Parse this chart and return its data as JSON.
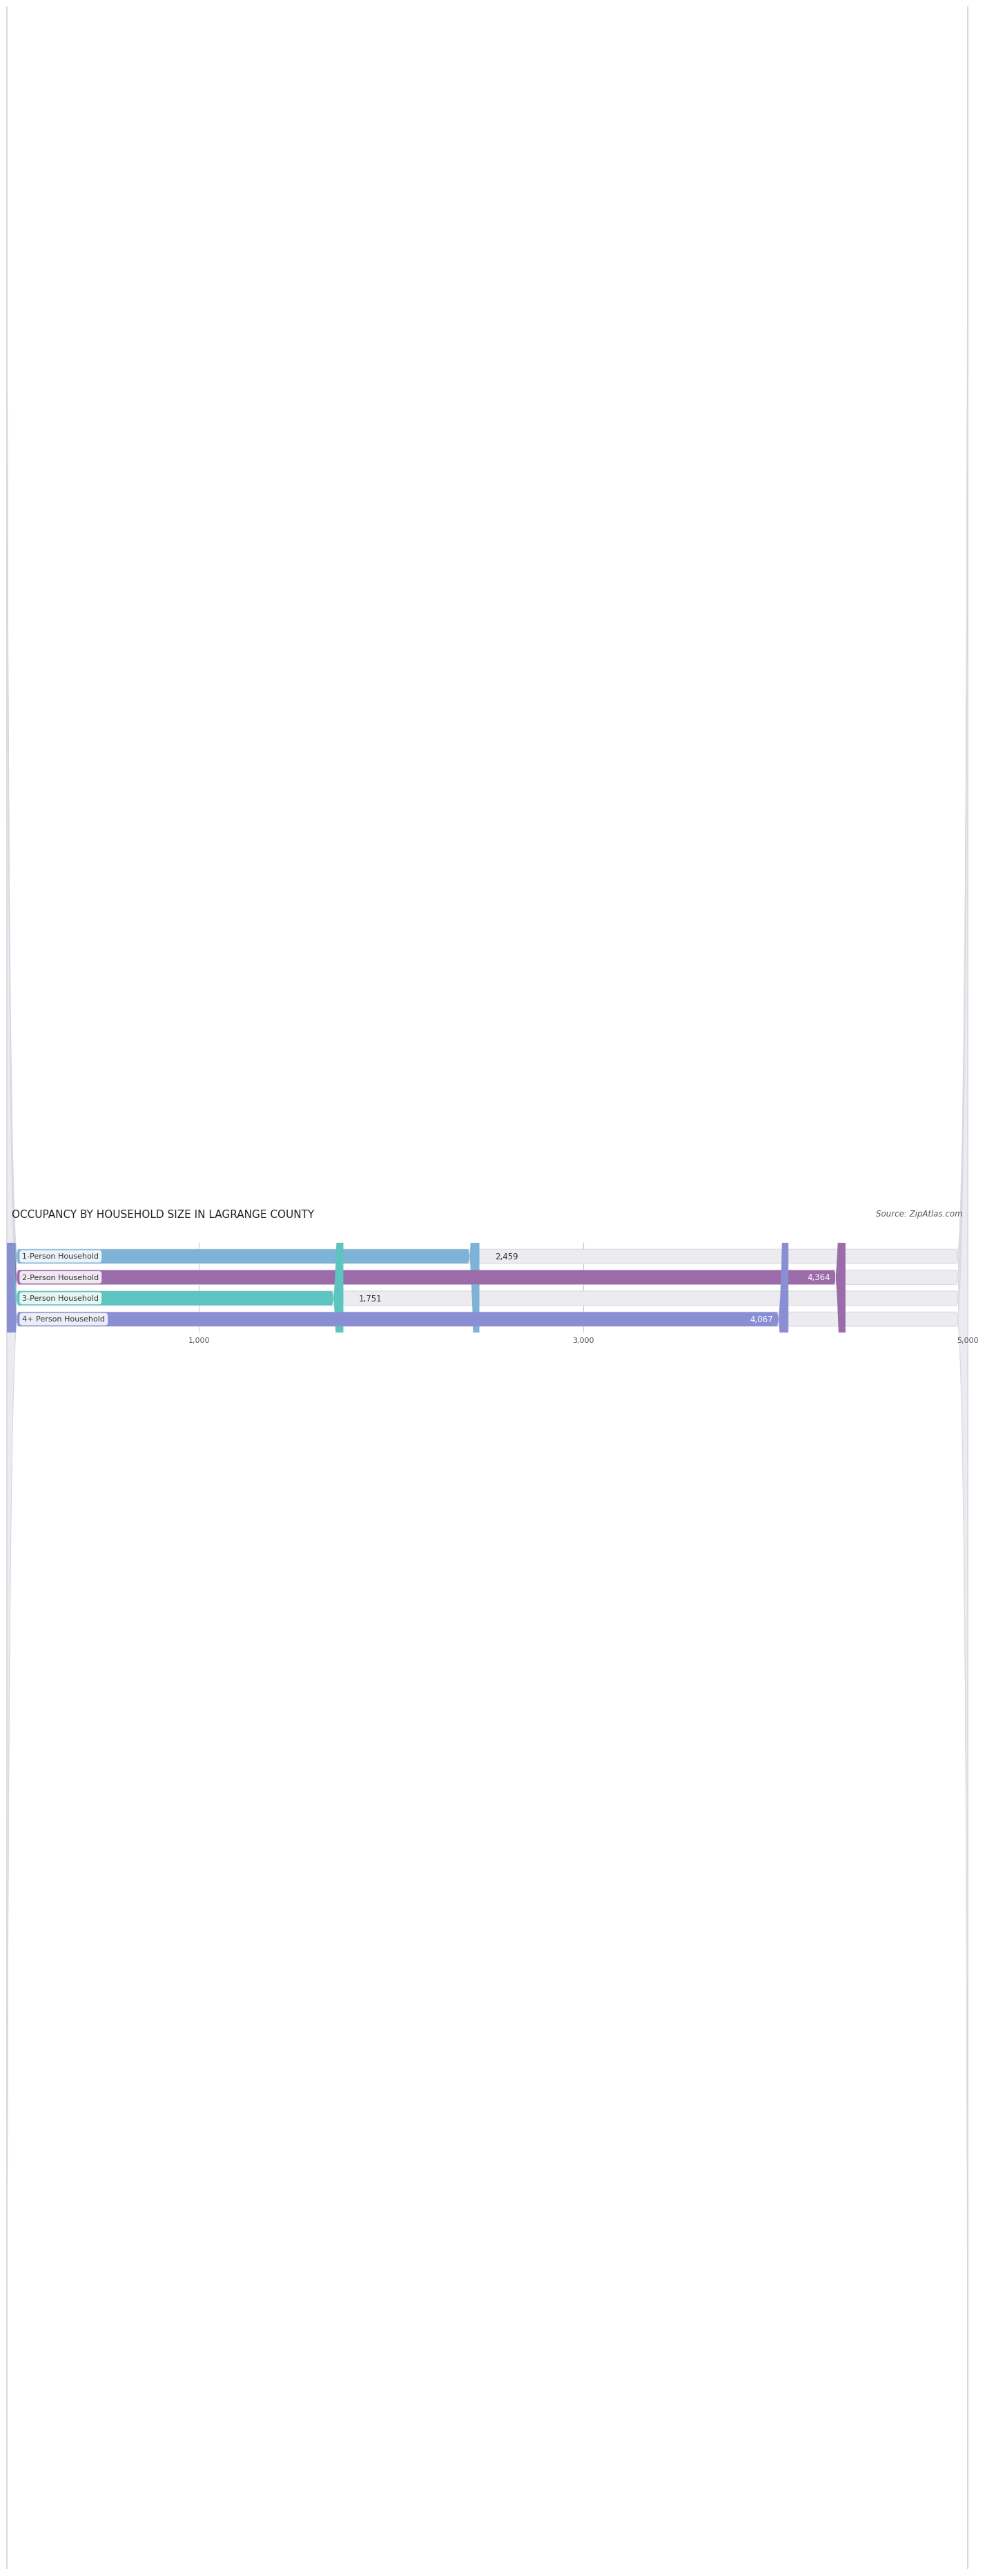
{
  "title": "OCCUPANCY BY HOUSEHOLD SIZE IN LAGRANGE COUNTY",
  "source": "Source: ZipAtlas.com",
  "categories": [
    "1-Person Household",
    "2-Person Household",
    "3-Person Household",
    "4+ Person Household"
  ],
  "values": [
    2459,
    4364,
    1751,
    4067
  ],
  "bar_colors": [
    "#7eb3d8",
    "#9b6baa",
    "#5ec4c0",
    "#8a8fd4"
  ],
  "label_colors": [
    "#333333",
    "#ffffff",
    "#333333",
    "#ffffff"
  ],
  "xlim_data": [
    0,
    5000
  ],
  "xticks": [
    1000,
    3000,
    5000
  ],
  "background_color": "#ffffff",
  "bar_bg_color": "#ebebf0",
  "bar_bg_border": "#d8d8e0",
  "title_fontsize": 11,
  "source_fontsize": 8.5,
  "bar_label_fontsize": 8.5,
  "category_fontsize": 8.0,
  "bar_height": 0.68,
  "bar_spacing": 1.0
}
